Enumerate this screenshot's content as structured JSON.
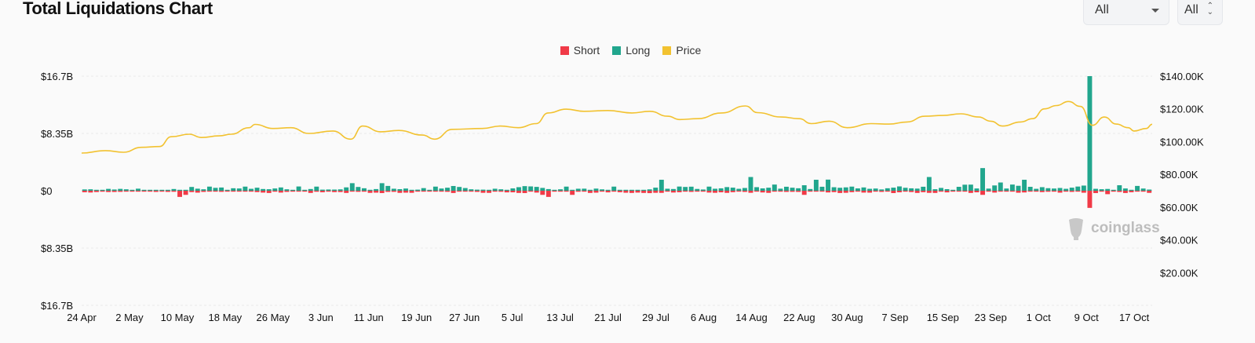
{
  "header": {
    "title": "Total Liquidations Chart"
  },
  "filters": {
    "select1": {
      "value": "All",
      "icon": "chevron-down-icon"
    },
    "select2": {
      "value": "All",
      "icon": "updown-icon"
    }
  },
  "watermark": "coinglass",
  "colors": {
    "short": "#f03a47",
    "long": "#21a68d",
    "price": "#f2c230"
  },
  "chart_data": {
    "type": "bar",
    "legend": [
      {
        "name": "Short",
        "color": "#f03a47"
      },
      {
        "name": "Long",
        "color": "#21a68d"
      },
      {
        "name": "Price",
        "color": "#f2c230"
      }
    ],
    "legend_position": "top-center",
    "grid": true,
    "y_left": {
      "ylim": [
        -16.7,
        16.7
      ],
      "unit": "billion USD",
      "ticks": [
        16.7,
        8.35,
        0,
        -8.35,
        -16.7
      ],
      "tick_labels": [
        "$16.7B",
        "$8.35B",
        "$0",
        "$8.35B",
        "$16.7B"
      ]
    },
    "y_right": {
      "ylim": [
        0,
        140000
      ],
      "ticks": [
        140000,
        120000,
        100000,
        80000,
        60000,
        40000,
        20000
      ],
      "tick_labels": [
        "$140.00K",
        "$120.00K",
        "$100.00K",
        "$80.00K",
        "$60.00K",
        "$40.00K",
        "$20.00K"
      ]
    },
    "x_start": "2025-04-24",
    "x_end": "2025-10-20",
    "x_tick_labels": [
      "24 Apr",
      "2 May",
      "10 May",
      "18 May",
      "26 May",
      "3 Jun",
      "11 Jun",
      "19 Jun",
      "27 Jun",
      "5 Jul",
      "13 Jul",
      "21 Jul",
      "29 Jul",
      "6 Aug",
      "14 Aug",
      "22 Aug",
      "30 Aug",
      "7 Sep",
      "15 Sep",
      "23 Sep",
      "1 Oct",
      "9 Oct",
      "17 Oct"
    ],
    "series": [
      {
        "name": "Long",
        "unit": "billion USD",
        "spikes": [
          [
            "2025-05-10",
            0.1
          ],
          [
            "2025-05-15",
            0.6
          ],
          [
            "2025-05-21",
            0.6
          ],
          [
            "2025-06-02",
            0.6
          ],
          [
            "2025-06-08",
            1.1
          ],
          [
            "2025-06-14",
            0.7
          ],
          [
            "2025-06-22",
            0.6
          ],
          [
            "2025-07-14",
            0.6
          ],
          [
            "2025-07-22",
            0.6
          ],
          [
            "2025-07-30",
            1.6
          ],
          [
            "2025-08-07",
            0.6
          ],
          [
            "2025-08-14",
            2.0
          ],
          [
            "2025-08-18",
            0.9
          ],
          [
            "2025-08-23",
            0.8
          ],
          [
            "2025-08-25",
            1.6
          ],
          [
            "2025-08-31",
            0.6
          ],
          [
            "2025-09-22",
            3.3
          ],
          [
            "2025-09-25",
            1.2
          ],
          [
            "2025-10-10",
            16.7
          ],
          [
            "2025-10-15",
            0.8
          ],
          [
            "2025-10-18",
            0.7
          ]
        ],
        "values": [
          0.19,
          0.21,
          0.05,
          0.06,
          0.27,
          0.18,
          0.27,
          0.21,
          0.09,
          0.3,
          0.09,
          0.09,
          0.1,
          0.12,
          0.06,
          0.25,
          0.05,
          0.1,
          0.55,
          0.3,
          0.21,
          0.3,
          0.42,
          0.47,
          0.11,
          0.36,
          0.33,
          0.43,
          0.28,
          0.44,
          0.25,
          0.22,
          0.33,
          0.48,
          0.21,
          0.09,
          0.62,
          0.12,
          0.25,
          0.08,
          0.16,
          0.18,
          0.17,
          0.2,
          0.49,
          0.85,
          0.55,
          0.36,
          0.07,
          0.24,
          1.1,
          0.17,
          0.29,
          0.23,
          0.32,
          0.06,
          0.16,
          0.38,
          0.12,
          0.1,
          0.32,
          0.44,
          0.69,
          0.55,
          0.39,
          0.21,
          0.16,
          0.16,
          0.1,
          0.29,
          0.21,
          0.11,
          0.34,
          0.52,
          0.67,
          0.63,
          0.56,
          0.41,
          0.24,
          0.08,
          0.21,
          0.12,
          0.09,
          0.29,
          0.3,
          0.11,
          0.31,
          0.2,
          0.1,
          0.15,
          0.11,
          0.08,
          0.04,
          0.08,
          0.04,
          0.2,
          0.45,
          0.22,
          0.29,
          0.25,
          0.61,
          0.55,
          0.59,
          0.26,
          0.18,
          0.33,
          0.29,
          0.35,
          0.53,
          0.45,
          0.28,
          0.4,
          0.41,
          0.52,
          0.34,
          0.44,
          0.6,
          0.3,
          0.58,
          0.44,
          0.36,
          0.25,
          0.25,
          0.31,
          0.58,
          1.62,
          0.51,
          0.43,
          0.49,
          0.12,
          0.34,
          0.48,
          0.28,
          0.32,
          0.19,
          0.36,
          0.45,
          0.63,
          0.43,
          0.35,
          0.31,
          0.58,
          2.0,
          0.22,
          0.41,
          0.23,
          0.06,
          0.57,
          0.88,
          0.89,
          0.33,
          0.4,
          0.31,
          0.77,
          0.49,
          0.32,
          0.9,
          0.72,
          1.6,
          0.57,
          0.28,
          0.52,
          0.37,
          0.32,
          0.4,
          0.28,
          0.45,
          0.61,
          0.75,
          0.11,
          0.28,
          0.22,
          0.26,
          0.08,
          0.07,
          0.33,
          0.08,
          0.08,
          0.32,
          0.17,
          0.26,
          0.15,
          0.29,
          0.43,
          0.23,
          0.33,
          0.6,
          0.38,
          0.19,
          0.24,
          0.12,
          0.36,
          0.29,
          0.29,
          0.13,
          0.11,
          0.13,
          0.16,
          0.36,
          0.3,
          0.11,
          0.09,
          0.05,
          0.02,
          0.12,
          0.31,
          0.05,
          0.21,
          0.32,
          0.24,
          0.1,
          0.28,
          0.14,
          0.23,
          0.3,
          0.43,
          0.21,
          0.31,
          0.21,
          0.27,
          0.17,
          0.15,
          0.21,
          0.27,
          0.19,
          0.46,
          0.56,
          0.44,
          0.32,
          0.3,
          0.37,
          0.27,
          0.26,
          0.4,
          0.25,
          0.5,
          0.38,
          0.43,
          0.28,
          0.35,
          0.06,
          0.1,
          0.25,
          0.64,
          0.41,
          0.43,
          0.58,
          0.43,
          0.47,
          0.49,
          0.27,
          0.15,
          0.17,
          0.22,
          0.14,
          0.07,
          0.23
        ],
        "note": "values listed are approximate daily long liquidations; spikes override"
      },
      {
        "name": "Short",
        "unit": "billion USD",
        "spikes": [
          [
            "2025-05-10",
            -0.9
          ],
          [
            "2025-05-11",
            -0.6
          ],
          [
            "2025-07-10",
            -0.6
          ],
          [
            "2025-07-11",
            -0.9
          ],
          [
            "2025-07-15",
            -0.6
          ],
          [
            "2025-08-23",
            -0.6
          ],
          [
            "2025-09-22",
            -0.6
          ],
          [
            "2025-10-10",
            -2.5
          ],
          [
            "2025-10-13",
            -0.5
          ]
        ],
        "values": [
          -0.22,
          -0.26,
          -0.19,
          -0.14,
          -0.19,
          -0.18,
          -0.16,
          -0.12,
          -0.06,
          -0.11,
          -0.07,
          -0.04,
          -0.17,
          -0.1,
          -0.17,
          -0.15,
          -0.3,
          -0.3,
          -0.2,
          -0.28,
          -0.17,
          -0.1,
          -0.04,
          -0.16,
          -0.12,
          -0.12,
          -0.05,
          -0.05,
          -0.13,
          -0.2,
          -0.27,
          -0.33,
          -0.14,
          -0.27,
          -0.17,
          -0.04,
          -0.02,
          -0.1,
          -0.32,
          -0.15,
          -0.22,
          -0.14,
          -0.2,
          -0.19,
          -0.32,
          -0.1,
          -0.16,
          -0.14,
          -0.31,
          -0.28,
          -0.34,
          -0.17,
          -0.16,
          -0.31,
          -0.28,
          -0.3,
          -0.06,
          -0.03,
          -0.03,
          -0.09,
          -0.08,
          -0.16,
          -0.33,
          -0.12,
          -0.08,
          -0.09,
          -0.17,
          -0.3,
          -0.31,
          -0.11,
          -0.15,
          -0.24,
          -0.23,
          -0.32,
          -0.34,
          -0.09,
          -0.27,
          -0.03,
          -0.25,
          -0.05,
          -0.11,
          -0.06,
          -0.34,
          -0.15,
          -0.07,
          -0.32,
          -0.28,
          -0.07,
          -0.24,
          -0.05,
          -0.22,
          -0.29,
          -0.32,
          -0.27,
          -0.32,
          -0.35,
          -0.3,
          -0.31,
          -0.13,
          -0.26,
          -0.22,
          -0.08,
          -0.17,
          -0.06,
          -0.06,
          -0.27,
          -0.3,
          -0.23,
          -0.31,
          -0.21,
          -0.04,
          -0.17,
          -0.3,
          -0.1,
          -0.25,
          -0.31,
          -0.07,
          -0.08,
          -0.17,
          -0.16,
          -0.17,
          -0.31,
          -0.05,
          -0.03,
          -0.12,
          -0.25,
          -0.2,
          -0.33,
          -0.3,
          -0.21,
          -0.04,
          -0.27,
          -0.28,
          -0.1,
          -0.17,
          -0.12,
          -0.34,
          -0.23,
          -0.12,
          -0.19,
          -0.32,
          -0.21,
          -0.31,
          -0.32,
          -0.14,
          -0.24,
          -0.03,
          -0.06,
          -0.03,
          -0.32,
          -0.23,
          -0.3,
          -0.11,
          -0.27,
          -0.11,
          -0.05,
          -0.08,
          -0.29,
          -0.25,
          -0.13,
          -0.1,
          -0.2,
          -0.15,
          -0.1,
          -0.28,
          -0.05,
          -0.17,
          -0.1,
          -0.29,
          -0.18,
          -0.34,
          -0.12,
          -0.08,
          -0.1,
          -0.18,
          -0.33,
          -0.22,
          -0.04,
          -0.09,
          -0.31,
          -0.22,
          -0.06,
          -0.15,
          -0.21,
          -0.31,
          -0.03,
          -0.03,
          -0.25,
          -0.03,
          -0.08,
          -0.23,
          -0.1,
          -0.24,
          -0.31,
          -0.18,
          -0.06,
          -0.05,
          -0.18,
          -0.11,
          -0.08,
          -0.35,
          -0.17,
          -0.05,
          -0.06,
          -0.3,
          -0.12,
          -0.06,
          -0.05,
          -0.11,
          -0.15,
          -0.33,
          -0.3,
          -0.31,
          -0.19,
          -0.2,
          -0.3,
          -0.08,
          -0.31,
          -0.05,
          -0.31,
          -0.23,
          -0.07,
          -0.23,
          -0.2,
          -0.33,
          -0.23,
          -0.21,
          -0.13,
          -0.1,
          -0.32,
          -0.11,
          -0.11,
          -0.11,
          -0.27,
          -0.1,
          -0.15,
          -0.24,
          -0.21,
          -0.18,
          -0.16,
          -0.07,
          -0.31,
          -0.21,
          -0.23,
          -0.27,
          -0.03,
          -0.19,
          -0.35,
          -0.3,
          -0.09,
          -0.06,
          -0.09,
          -0.21,
          -0.1,
          -0.11,
          -0.24
        ],
        "note": "values listed are approximate daily short liquidations; spikes override"
      },
      {
        "name": "Price",
        "unit": "USD",
        "axis": "right",
        "points": [
          [
            "2025-04-24",
            93000
          ],
          [
            "2025-04-28",
            94500
          ],
          [
            "2025-05-01",
            93500
          ],
          [
            "2025-05-04",
            96500
          ],
          [
            "2025-05-07",
            97000
          ],
          [
            "2025-05-09",
            103000
          ],
          [
            "2025-05-12",
            104500
          ],
          [
            "2025-05-14",
            102500
          ],
          [
            "2025-05-17",
            103500
          ],
          [
            "2025-05-19",
            104500
          ],
          [
            "2025-05-22",
            108500
          ],
          [
            "2025-05-23",
            110500
          ],
          [
            "2025-05-26",
            108000
          ],
          [
            "2025-05-29",
            108500
          ],
          [
            "2025-06-01",
            105000
          ],
          [
            "2025-06-05",
            106500
          ],
          [
            "2025-06-08",
            101500
          ],
          [
            "2025-06-10",
            109500
          ],
          [
            "2025-06-13",
            106000
          ],
          [
            "2025-06-16",
            106800
          ],
          [
            "2025-06-20",
            104000
          ],
          [
            "2025-06-22",
            101500
          ],
          [
            "2025-06-25",
            107500
          ],
          [
            "2025-06-30",
            108000
          ],
          [
            "2025-07-03",
            109500
          ],
          [
            "2025-07-06",
            108500
          ],
          [
            "2025-07-09",
            111000
          ],
          [
            "2025-07-11",
            117500
          ],
          [
            "2025-07-14",
            119800
          ],
          [
            "2025-07-17",
            118500
          ],
          [
            "2025-07-21",
            119000
          ],
          [
            "2025-07-25",
            117500
          ],
          [
            "2025-07-28",
            118500
          ],
          [
            "2025-07-31",
            115500
          ],
          [
            "2025-08-02",
            113500
          ],
          [
            "2025-08-05",
            114000
          ],
          [
            "2025-08-09",
            117500
          ],
          [
            "2025-08-13",
            121800
          ],
          [
            "2025-08-15",
            117700
          ],
          [
            "2025-08-19",
            115000
          ],
          [
            "2025-08-22",
            114000
          ],
          [
            "2025-08-24",
            111000
          ],
          [
            "2025-08-27",
            112500
          ],
          [
            "2025-08-30",
            108500
          ],
          [
            "2025-09-03",
            111000
          ],
          [
            "2025-09-06",
            110700
          ],
          [
            "2025-09-09",
            112000
          ],
          [
            "2025-09-12",
            115500
          ],
          [
            "2025-09-15",
            116000
          ],
          [
            "2025-09-18",
            117000
          ],
          [
            "2025-09-21",
            115000
          ],
          [
            "2025-09-23",
            112500
          ],
          [
            "2025-09-25",
            109500
          ],
          [
            "2025-09-28",
            112000
          ],
          [
            "2025-09-30",
            114000
          ],
          [
            "2025-10-02",
            120000
          ],
          [
            "2025-10-04",
            122000
          ],
          [
            "2025-10-06",
            124500
          ],
          [
            "2025-10-08",
            121500
          ],
          [
            "2025-10-10",
            110000
          ],
          [
            "2025-10-12",
            115000
          ],
          [
            "2025-10-14",
            110700
          ],
          [
            "2025-10-16",
            108500
          ],
          [
            "2025-10-17",
            106500
          ],
          [
            "2025-10-19",
            108000
          ],
          [
            "2025-10-20",
            110600
          ]
        ]
      }
    ]
  }
}
